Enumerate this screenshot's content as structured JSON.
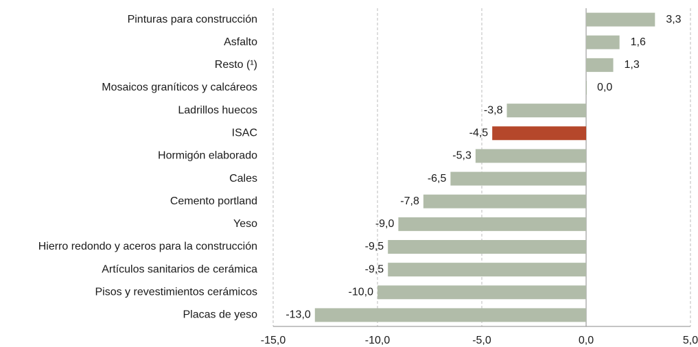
{
  "chart_data": {
    "type": "hbar",
    "categories": [
      "Pinturas para construcción",
      "Asfalto",
      "Resto (¹)",
      "Mosaicos graníticos y calcáreos",
      "Ladrillos huecos",
      "ISAC",
      "Hormigón elaborado",
      "Cales",
      "Cemento portland",
      "Yeso",
      "Hierro redondo y aceros para la construcción",
      "Artículos sanitarios de cerámica",
      "Pisos y revestimientos cerámicos",
      "Placas de yeso"
    ],
    "values": [
      3.3,
      1.6,
      1.3,
      0.0,
      -3.8,
      -4.5,
      -5.3,
      -6.5,
      -7.8,
      -9.0,
      -9.5,
      -9.5,
      -10.0,
      -13.0
    ],
    "value_labels": [
      "3,3",
      "1,6",
      "1,3",
      "0,0",
      "-3,8",
      "-4,5",
      "-5,3",
      "-6,5",
      "-7,8",
      "-9,0",
      "-9,5",
      "-9,5",
      "-10,0",
      "-13,0"
    ],
    "colors": [
      "#b1bca9",
      "#b1bca9",
      "#b1bca9",
      "#b1bca9",
      "#b1bca9",
      "#b5472b",
      "#b1bca9",
      "#b1bca9",
      "#b1bca9",
      "#b1bca9",
      "#b1bca9",
      "#b1bca9",
      "#b1bca9",
      "#b1bca9"
    ],
    "xlim": [
      -15,
      5
    ],
    "xticks": [
      {
        "value": -15,
        "label": "-15,0"
      },
      {
        "value": -10,
        "label": "-10,0"
      },
      {
        "value": -5,
        "label": "-5,0"
      },
      {
        "value": 0,
        "label": "0,0"
      },
      {
        "value": 5,
        "label": "5,0"
      }
    ],
    "grid": true
  }
}
